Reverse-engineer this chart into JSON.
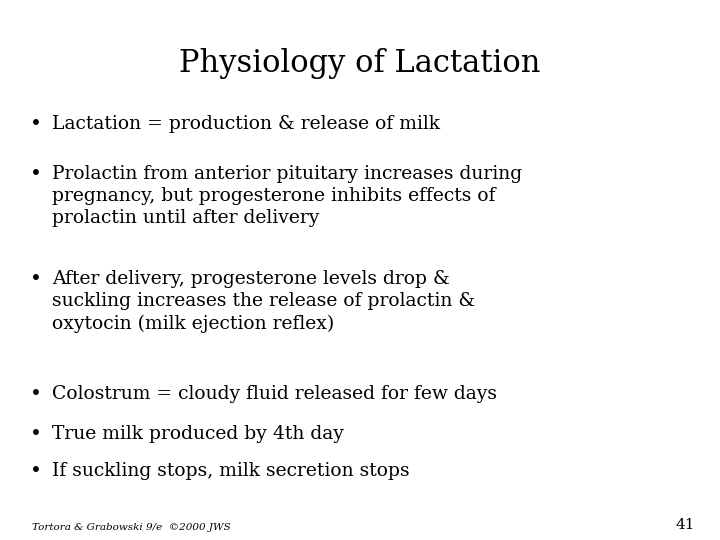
{
  "title": "Physiology of Lactation",
  "title_fontsize": 22,
  "title_font": "DejaVu Serif",
  "background_color": "#ffffff",
  "text_color": "#000000",
  "bullet_items": [
    "Lactation = production & release of milk",
    "Prolactin from anterior pituitary increases during\npregnancy, but progesterone inhibits effects of\nprolactin until after delivery",
    "After delivery, progesterone levels drop &\nsuckling increases the release of prolactin &\noxytocin (milk ejection reflex)",
    "Colostrum = cloudy fluid released for few days",
    "True milk produced by 4th day",
    "If suckling stops, milk secretion stops"
  ],
  "bullet_fontsize": 13.5,
  "bullet_font": "DejaVu Serif",
  "footer_text": "Tortora & Grabowski 9/e  ©2000 JWS",
  "footer_fontsize": 7.5,
  "page_number": "41",
  "page_number_fontsize": 11
}
